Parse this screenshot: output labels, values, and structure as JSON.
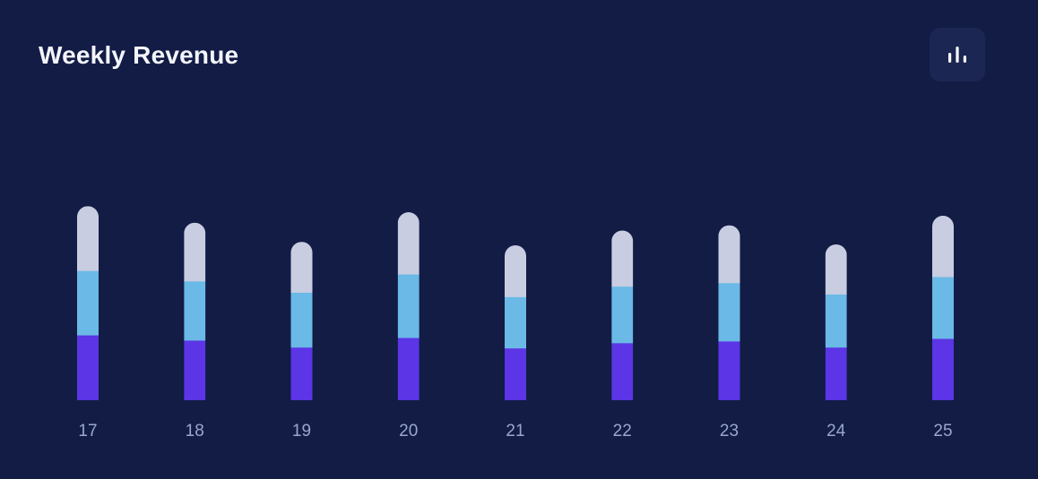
{
  "header": {
    "title": "Weekly Revenue",
    "chart_toggle_icon": "bar-chart-icon"
  },
  "colors": {
    "background": "#121c45",
    "toggle_background": "#1b2653",
    "segment_bottom": "#5b35e6",
    "segment_middle": "#6ab9e6",
    "segment_top": "#c8cde2",
    "tick_label": "#9aa7cb"
  },
  "chart_data": {
    "type": "bar",
    "stacked": true,
    "title": "Weekly Revenue",
    "xlabel": "",
    "ylabel": "",
    "categories": [
      "17",
      "18",
      "19",
      "20",
      "21",
      "22",
      "23",
      "24",
      "25"
    ],
    "series": [
      {
        "values": [
          75,
          69,
          61,
          72,
          60,
          66,
          68,
          61,
          71
        ]
      },
      {
        "values": [
          74,
          68,
          63,
          73,
          59,
          65,
          67,
          61,
          71
        ]
      },
      {
        "values": [
          74,
          67,
          58,
          71,
          59,
          64,
          66,
          57,
          70
        ]
      }
    ],
    "ylim": [
      0,
      250
    ],
    "grid": false,
    "legend": "none"
  }
}
